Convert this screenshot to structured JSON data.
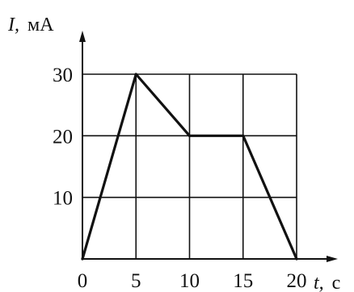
{
  "chart_data": {
    "type": "line",
    "x_axis": {
      "label_symbol": "t,",
      "label_unit": "с",
      "ticks": [
        0,
        5,
        10,
        15,
        20
      ],
      "range": [
        0,
        20
      ]
    },
    "y_axis": {
      "label_symbol": "I,",
      "label_unit": "мА",
      "ticks": [
        10,
        20,
        30
      ],
      "range": [
        0,
        30
      ]
    },
    "grid": true,
    "series": [
      {
        "points": [
          {
            "x": 0,
            "y": 0
          },
          {
            "x": 5,
            "y": 30
          },
          {
            "x": 10,
            "y": 20
          },
          {
            "x": 15,
            "y": 20
          },
          {
            "x": 20,
            "y": 0
          }
        ]
      }
    ],
    "colors": {
      "ink": "#111111",
      "background": "#ffffff"
    }
  }
}
